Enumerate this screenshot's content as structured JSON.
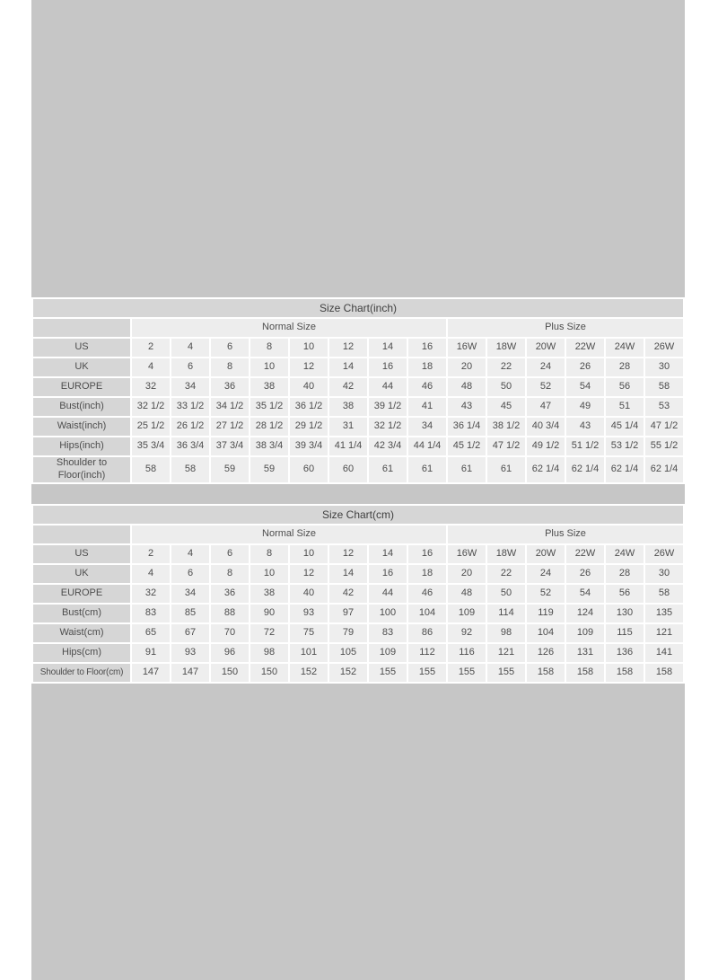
{
  "colors": {
    "page_margin": "#ffffff",
    "content_background": "#c6c6c6",
    "title_and_label_bg": "#d6d6d6",
    "data_cell_bg": "#eeeeee",
    "group_header_bg": "#ededed",
    "cell_border": "#ffffff",
    "text": "#4d4d4d"
  },
  "chart_data": [
    {
      "type": "table",
      "title": "Size Chart(inch)",
      "column_groups": [
        {
          "label": "Normal Size",
          "span": 8
        },
        {
          "label": "Plus Size",
          "span": 6
        }
      ],
      "rows": [
        {
          "label": "US",
          "values": [
            "2",
            "4",
            "6",
            "8",
            "10",
            "12",
            "14",
            "16",
            "16W",
            "18W",
            "20W",
            "22W",
            "24W",
            "26W"
          ]
        },
        {
          "label": "UK",
          "values": [
            "4",
            "6",
            "8",
            "10",
            "12",
            "14",
            "16",
            "18",
            "20",
            "22",
            "24",
            "26",
            "28",
            "30"
          ]
        },
        {
          "label": "EUROPE",
          "values": [
            "32",
            "34",
            "36",
            "38",
            "40",
            "42",
            "44",
            "46",
            "48",
            "50",
            "52",
            "54",
            "56",
            "58"
          ]
        },
        {
          "label": "Bust(inch)",
          "values": [
            "32 1/2",
            "33 1/2",
            "34 1/2",
            "35 1/2",
            "36 1/2",
            "38",
            "39 1/2",
            "41",
            "43",
            "45",
            "47",
            "49",
            "51",
            "53"
          ]
        },
        {
          "label": "Waist(inch)",
          "values": [
            "25 1/2",
            "26 1/2",
            "27 1/2",
            "28 1/2",
            "29 1/2",
            "31",
            "32 1/2",
            "34",
            "36 1/4",
            "38 1/2",
            "40 3/4",
            "43",
            "45 1/4",
            "47 1/2"
          ]
        },
        {
          "label": "Hips(inch)",
          "values": [
            "35 3/4",
            "36 3/4",
            "37 3/4",
            "38 3/4",
            "39 3/4",
            "41 1/4",
            "42 3/4",
            "44 1/4",
            "45 1/2",
            "47 1/2",
            "49 1/2",
            "51 1/2",
            "53 1/2",
            "55 1/2"
          ]
        },
        {
          "label": "Shoulder to Floor(inch)",
          "values": [
            "58",
            "58",
            "59",
            "59",
            "60",
            "60",
            "61",
            "61",
            "61",
            "61",
            "62 1/4",
            "62 1/4",
            "62 1/4",
            "62 1/4"
          ]
        }
      ]
    },
    {
      "type": "table",
      "title": "Size Chart(cm)",
      "column_groups": [
        {
          "label": "Normal Size",
          "span": 8
        },
        {
          "label": "Plus Size",
          "span": 6
        }
      ],
      "rows": [
        {
          "label": "US",
          "values": [
            "2",
            "4",
            "6",
            "8",
            "10",
            "12",
            "14",
            "16",
            "16W",
            "18W",
            "20W",
            "22W",
            "24W",
            "26W"
          ]
        },
        {
          "label": "UK",
          "values": [
            "4",
            "6",
            "8",
            "10",
            "12",
            "14",
            "16",
            "18",
            "20",
            "22",
            "24",
            "26",
            "28",
            "30"
          ]
        },
        {
          "label": "EUROPE",
          "values": [
            "32",
            "34",
            "36",
            "38",
            "40",
            "42",
            "44",
            "46",
            "48",
            "50",
            "52",
            "54",
            "56",
            "58"
          ]
        },
        {
          "label": "Bust(cm)",
          "values": [
            "83",
            "85",
            "88",
            "90",
            "93",
            "97",
            "100",
            "104",
            "109",
            "114",
            "119",
            "124",
            "130",
            "135"
          ]
        },
        {
          "label": "Waist(cm)",
          "values": [
            "65",
            "67",
            "70",
            "72",
            "75",
            "79",
            "83",
            "86",
            "92",
            "98",
            "104",
            "109",
            "115",
            "121"
          ]
        },
        {
          "label": "Hips(cm)",
          "values": [
            "91",
            "93",
            "96",
            "98",
            "101",
            "105",
            "109",
            "112",
            "116",
            "121",
            "126",
            "131",
            "136",
            "141"
          ]
        },
        {
          "label": "Shoulder to Floor(cm)",
          "values": [
            "147",
            "147",
            "150",
            "150",
            "152",
            "152",
            "155",
            "155",
            "155",
            "155",
            "158",
            "158",
            "158",
            "158"
          ]
        }
      ]
    }
  ]
}
